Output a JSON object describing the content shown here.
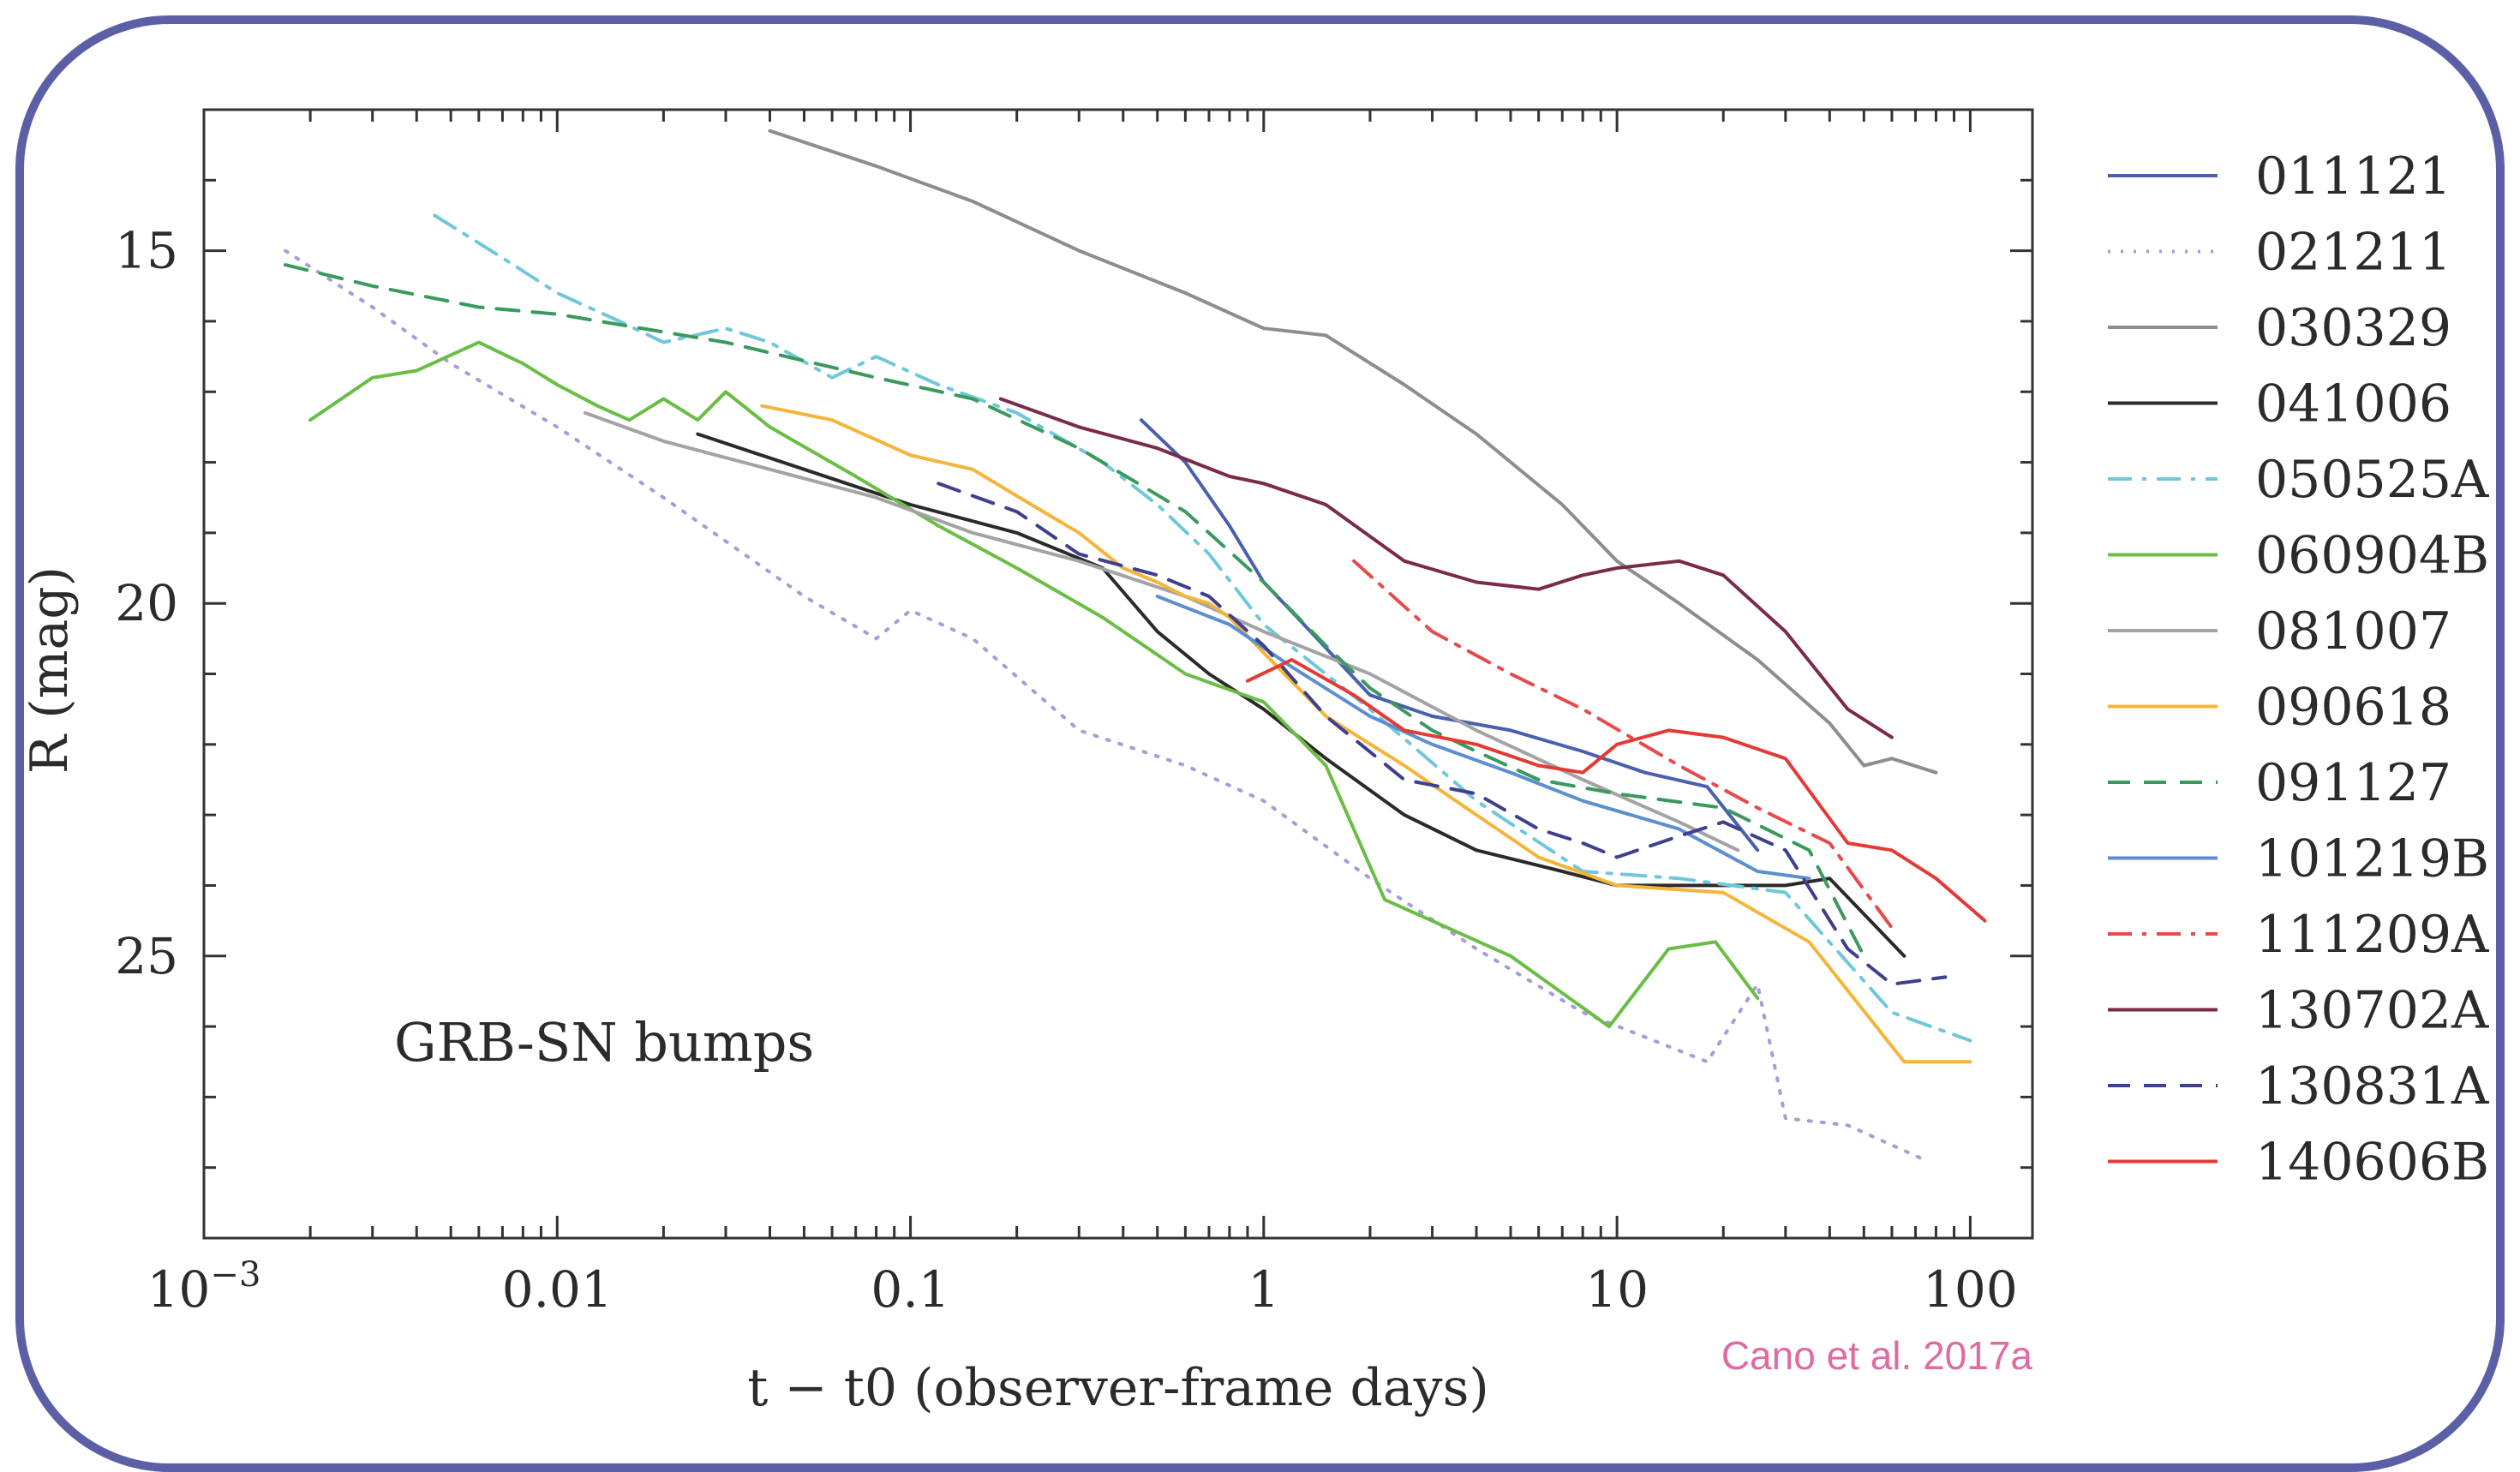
{
  "chart_data": {
    "type": "line",
    "xscale": "log",
    "xlim": [
      0.001,
      150
    ],
    "ylim": [
      13,
      29
    ],
    "y_inverted": true,
    "xlabel": "t − t0 (observer-frame days)",
    "ylabel": "R (mag)",
    "annotation": "GRB-SN bumps",
    "credit": "Cano et al. 2017a",
    "x_ticks": [
      {
        "value": 0.001,
        "label": "10^-3"
      },
      {
        "value": 0.01,
        "label": "0.01"
      },
      {
        "value": 0.1,
        "label": "0.1"
      },
      {
        "value": 1,
        "label": "1"
      },
      {
        "value": 10,
        "label": "10"
      },
      {
        "value": 100,
        "label": "100"
      }
    ],
    "y_ticks": [
      15,
      20,
      25
    ],
    "legend_position": "right, outside plot",
    "series": [
      {
        "name": "011121",
        "color": "#4a5fae",
        "dash": "solid",
        "x": [
          0.45,
          0.6,
          0.8,
          1.0,
          1.3,
          2.0,
          3.0,
          5.0,
          8.0,
          12.0,
          18.0,
          25.0
        ],
        "y": [
          17.4,
          18.0,
          18.9,
          19.7,
          20.3,
          21.3,
          21.6,
          21.8,
          22.1,
          22.4,
          22.6,
          23.5
        ]
      },
      {
        "name": "021211",
        "color": "#a99bd8",
        "dash": "dotted",
        "x": [
          0.0017,
          0.003,
          0.005,
          0.01,
          0.02,
          0.05,
          0.08,
          0.1,
          0.15,
          0.3,
          0.6,
          1.0,
          2.0,
          4.0,
          8.0,
          18.0,
          25.0,
          30.0,
          45.0,
          75.0
        ],
        "y": [
          15.0,
          15.8,
          16.6,
          17.5,
          18.5,
          19.9,
          20.5,
          20.1,
          20.5,
          21.8,
          22.3,
          22.8,
          23.9,
          24.9,
          25.8,
          26.5,
          25.4,
          27.3,
          27.4,
          27.9
        ]
      },
      {
        "name": "030329",
        "color": "#8d8d8d",
        "dash": "solid",
        "x": [
          0.04,
          0.08,
          0.15,
          0.3,
          0.6,
          1.0,
          1.5,
          2.5,
          4.0,
          7.0,
          10.0,
          15.0,
          25.0,
          40.0,
          50.0,
          60.0,
          80.0
        ],
        "y": [
          13.3,
          13.8,
          14.3,
          15.0,
          15.6,
          16.1,
          16.2,
          16.9,
          17.6,
          18.6,
          19.4,
          20.0,
          20.8,
          21.7,
          22.3,
          22.2,
          22.4
        ]
      },
      {
        "name": "041006",
        "color": "#2a2a2a",
        "dash": "solid",
        "x": [
          0.025,
          0.05,
          0.1,
          0.2,
          0.35,
          0.5,
          0.7,
          1.0,
          1.5,
          2.5,
          4.0,
          7.0,
          10.0,
          20.0,
          30.0,
          40.0,
          65.0
        ],
        "y": [
          17.6,
          18.1,
          18.6,
          19.0,
          19.5,
          20.4,
          21.0,
          21.5,
          22.2,
          23.0,
          23.5,
          23.8,
          24.0,
          24.0,
          24.0,
          23.9,
          25.0
        ]
      },
      {
        "name": "050525A",
        "color": "#6fc8da",
        "dash": "dashdot",
        "x": [
          0.0045,
          0.007,
          0.01,
          0.015,
          0.02,
          0.03,
          0.04,
          0.06,
          0.08,
          0.12,
          0.2,
          0.35,
          0.5,
          0.7,
          1.0,
          2.0,
          4.0,
          8.0,
          15.0,
          30.0,
          60.0,
          100.0
        ],
        "y": [
          14.5,
          15.1,
          15.6,
          16.0,
          16.3,
          16.1,
          16.3,
          16.8,
          16.5,
          16.9,
          17.3,
          18.0,
          18.6,
          19.3,
          20.3,
          21.5,
          22.8,
          23.8,
          23.9,
          24.1,
          25.8,
          26.2
        ]
      },
      {
        "name": "060904B",
        "color": "#6abd45",
        "dash": "solid",
        "x": [
          0.002,
          0.003,
          0.004,
          0.006,
          0.008,
          0.01,
          0.013,
          0.016,
          0.02,
          0.025,
          0.03,
          0.04,
          0.07,
          0.12,
          0.2,
          0.35,
          0.6,
          1.0,
          1.5,
          2.2,
          5.0,
          9.5,
          14.0,
          19.0,
          25.0
        ],
        "y": [
          17.4,
          16.8,
          16.7,
          16.3,
          16.6,
          16.9,
          17.2,
          17.4,
          17.1,
          17.4,
          17.0,
          17.5,
          18.2,
          18.9,
          19.5,
          20.2,
          21.0,
          21.4,
          22.3,
          24.2,
          25.0,
          26.0,
          24.9,
          24.8,
          25.6
        ]
      },
      {
        "name": "081007",
        "color": "#a3a3a3",
        "dash": "solid",
        "x": [
          0.012,
          0.02,
          0.04,
          0.08,
          0.15,
          0.3,
          0.6,
          1.0,
          2.0,
          4.0,
          8.0,
          15.0,
          22.0
        ],
        "y": [
          17.3,
          17.7,
          18.1,
          18.5,
          19.0,
          19.4,
          19.9,
          20.4,
          21.0,
          21.8,
          22.5,
          23.1,
          23.5
        ]
      },
      {
        "name": "090618",
        "color": "#f5b43a",
        "dash": "solid",
        "x": [
          0.038,
          0.06,
          0.1,
          0.15,
          0.22,
          0.3,
          0.4,
          0.5,
          0.6,
          0.7,
          0.8,
          1.0,
          1.5,
          2.5,
          4.0,
          6.0,
          10.0,
          20.0,
          35.0,
          65.0,
          100.0
        ],
        "y": [
          17.2,
          17.4,
          17.9,
          18.1,
          18.6,
          19.0,
          19.5,
          19.7,
          19.9,
          20.0,
          20.2,
          20.7,
          21.6,
          22.3,
          23.0,
          23.6,
          24.0,
          24.1,
          24.8,
          26.5,
          26.5
        ]
      },
      {
        "name": "091127",
        "color": "#3a9a5e",
        "dash": "dashed",
        "x": [
          0.0017,
          0.003,
          0.006,
          0.01,
          0.03,
          0.08,
          0.15,
          0.3,
          0.6,
          1.0,
          1.5,
          2.0,
          3.0,
          4.0,
          6.0,
          10.0,
          20.0,
          35.0,
          50.0
        ],
        "y": [
          15.2,
          15.5,
          15.8,
          15.9,
          16.3,
          16.8,
          17.1,
          17.8,
          18.7,
          19.7,
          20.6,
          21.2,
          21.8,
          22.1,
          22.5,
          22.7,
          22.9,
          23.5,
          25.0
        ]
      },
      {
        "name": "101219B",
        "color": "#5b8fcf",
        "dash": "solid",
        "x": [
          0.5,
          0.8,
          1.2,
          2.0,
          3.0,
          5.0,
          8.0,
          15.0,
          25.0,
          35.0
        ],
        "y": [
          19.9,
          20.3,
          20.9,
          21.6,
          22.0,
          22.4,
          22.8,
          23.2,
          23.8,
          23.9
        ]
      },
      {
        "name": "111209A",
        "color": "#e8494b",
        "dash": "dashdot",
        "x": [
          1.8,
          3.0,
          5.0,
          8.0,
          15.0,
          25.0,
          40.0,
          60.0
        ],
        "y": [
          19.4,
          20.4,
          21.0,
          21.5,
          22.3,
          22.9,
          23.4,
          24.6
        ]
      },
      {
        "name": "130702A",
        "color": "#7a2a4c",
        "dash": "solid",
        "x": [
          0.18,
          0.3,
          0.5,
          0.8,
          1.0,
          1.5,
          2.5,
          4.0,
          6.0,
          8.0,
          10.0,
          15.0,
          20.0,
          30.0,
          45.0,
          60.0
        ],
        "y": [
          17.1,
          17.5,
          17.8,
          18.2,
          18.3,
          18.6,
          19.4,
          19.7,
          19.8,
          19.6,
          19.5,
          19.4,
          19.6,
          20.4,
          21.5,
          21.9
        ]
      },
      {
        "name": "130831A",
        "color": "#3f3f8f",
        "dash": "dashed",
        "x": [
          0.12,
          0.2,
          0.3,
          0.5,
          0.7,
          1.0,
          1.5,
          2.5,
          4.0,
          6.0,
          8.0,
          10.0,
          15.0,
          20.0,
          30.0,
          45.0,
          60.0,
          85.0
        ],
        "y": [
          18.3,
          18.7,
          19.3,
          19.6,
          19.9,
          20.6,
          21.6,
          22.5,
          22.7,
          23.2,
          23.4,
          23.6,
          23.3,
          23.1,
          23.5,
          24.9,
          25.4,
          25.3
        ]
      },
      {
        "name": "140606B",
        "color": "#e33a35",
        "dash": "solid",
        "x": [
          0.9,
          1.2,
          1.8,
          2.5,
          4.0,
          6.0,
          8.0,
          10.0,
          14.0,
          20.0,
          30.0,
          45.0,
          60.0,
          80.0,
          110.0
        ],
        "y": [
          21.1,
          20.8,
          21.3,
          21.8,
          22.0,
          22.3,
          22.4,
          22.0,
          21.8,
          21.9,
          22.2,
          23.4,
          23.5,
          23.9,
          24.5
        ]
      }
    ]
  }
}
